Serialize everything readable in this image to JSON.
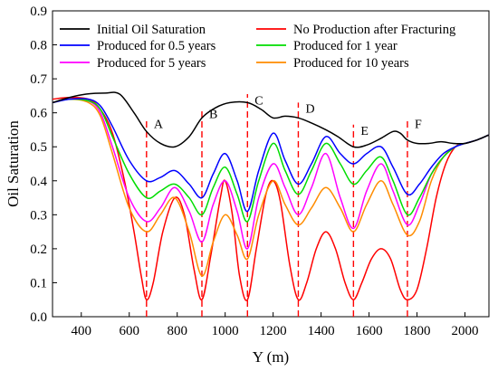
{
  "chart_data": {
    "type": "line",
    "title": "",
    "xlabel": "Y (m)",
    "ylabel": "Oil Saturation",
    "xlim": [
      280,
      2100
    ],
    "ylim": [
      0,
      0.9
    ],
    "xticks": [
      400,
      600,
      800,
      1000,
      1200,
      1400,
      1600,
      1800,
      2000
    ],
    "yticks": [
      0.0,
      0.1,
      0.2,
      0.3,
      0.4,
      0.5,
      0.6,
      0.7,
      0.8,
      0.9
    ],
    "grid": false,
    "legend_position": "top",
    "markers": [
      {
        "label": "A",
        "x": 672
      },
      {
        "label": "B",
        "x": 903
      },
      {
        "label": "C",
        "x": 1093
      },
      {
        "label": "D",
        "x": 1305
      },
      {
        "label": "E",
        "x": 1535
      },
      {
        "label": "F",
        "x": 1760
      }
    ],
    "series": [
      {
        "name": "Initial Oil Saturation",
        "color": "#000000",
        "points": [
          [
            280,
            0.63
          ],
          [
            350,
            0.645
          ],
          [
            420,
            0.655
          ],
          [
            500,
            0.658
          ],
          [
            560,
            0.655
          ],
          [
            620,
            0.6
          ],
          [
            672,
            0.545
          ],
          [
            730,
            0.51
          ],
          [
            790,
            0.5
          ],
          [
            850,
            0.53
          ],
          [
            903,
            0.585
          ],
          [
            960,
            0.615
          ],
          [
            1020,
            0.63
          ],
          [
            1093,
            0.63
          ],
          [
            1150,
            0.61
          ],
          [
            1200,
            0.585
          ],
          [
            1250,
            0.59
          ],
          [
            1305,
            0.585
          ],
          [
            1360,
            0.57
          ],
          [
            1420,
            0.55
          ],
          [
            1470,
            0.53
          ],
          [
            1535,
            0.5
          ],
          [
            1590,
            0.505
          ],
          [
            1650,
            0.525
          ],
          [
            1700,
            0.545
          ],
          [
            1730,
            0.54
          ],
          [
            1760,
            0.52
          ],
          [
            1800,
            0.51
          ],
          [
            1850,
            0.51
          ],
          [
            1900,
            0.515
          ],
          [
            1950,
            0.51
          ],
          [
            2000,
            0.51
          ],
          [
            2050,
            0.52
          ],
          [
            2100,
            0.535
          ]
        ]
      },
      {
        "name": "No Production after Fracturing",
        "color": "#ff0000",
        "points": [
          [
            280,
            0.64
          ],
          [
            350,
            0.645
          ],
          [
            430,
            0.64
          ],
          [
            480,
            0.61
          ],
          [
            530,
            0.54
          ],
          [
            580,
            0.4
          ],
          [
            620,
            0.25
          ],
          [
            650,
            0.12
          ],
          [
            672,
            0.05
          ],
          [
            700,
            0.1
          ],
          [
            740,
            0.25
          ],
          [
            790,
            0.35
          ],
          [
            830,
            0.3
          ],
          [
            870,
            0.14
          ],
          [
            903,
            0.05
          ],
          [
            940,
            0.18
          ],
          [
            980,
            0.35
          ],
          [
            1000,
            0.4
          ],
          [
            1030,
            0.3
          ],
          [
            1060,
            0.12
          ],
          [
            1093,
            0.05
          ],
          [
            1130,
            0.2
          ],
          [
            1170,
            0.36
          ],
          [
            1200,
            0.4
          ],
          [
            1230,
            0.34
          ],
          [
            1270,
            0.15
          ],
          [
            1305,
            0.05
          ],
          [
            1340,
            0.1
          ],
          [
            1380,
            0.2
          ],
          [
            1420,
            0.25
          ],
          [
            1460,
            0.2
          ],
          [
            1500,
            0.1
          ],
          [
            1535,
            0.05
          ],
          [
            1570,
            0.1
          ],
          [
            1610,
            0.17
          ],
          [
            1650,
            0.2
          ],
          [
            1690,
            0.17
          ],
          [
            1730,
            0.08
          ],
          [
            1760,
            0.05
          ],
          [
            1800,
            0.08
          ],
          [
            1840,
            0.2
          ],
          [
            1880,
            0.35
          ],
          [
            1920,
            0.45
          ],
          [
            1960,
            0.5
          ],
          [
            2000,
            0.51
          ],
          [
            2050,
            0.52
          ],
          [
            2100,
            0.535
          ]
        ]
      },
      {
        "name": "Produced for 0.5 years",
        "color": "#0000ff",
        "points": [
          [
            280,
            0.63
          ],
          [
            350,
            0.64
          ],
          [
            430,
            0.64
          ],
          [
            480,
            0.62
          ],
          [
            530,
            0.56
          ],
          [
            600,
            0.46
          ],
          [
            672,
            0.4
          ],
          [
            730,
            0.41
          ],
          [
            790,
            0.43
          ],
          [
            850,
            0.39
          ],
          [
            903,
            0.35
          ],
          [
            950,
            0.42
          ],
          [
            1000,
            0.48
          ],
          [
            1050,
            0.4
          ],
          [
            1093,
            0.31
          ],
          [
            1140,
            0.43
          ],
          [
            1200,
            0.54
          ],
          [
            1250,
            0.46
          ],
          [
            1305,
            0.39
          ],
          [
            1360,
            0.45
          ],
          [
            1420,
            0.53
          ],
          [
            1480,
            0.48
          ],
          [
            1535,
            0.45
          ],
          [
            1590,
            0.48
          ],
          [
            1650,
            0.5
          ],
          [
            1700,
            0.44
          ],
          [
            1760,
            0.36
          ],
          [
            1810,
            0.39
          ],
          [
            1860,
            0.44
          ],
          [
            1910,
            0.48
          ],
          [
            1960,
            0.5
          ],
          [
            2000,
            0.51
          ],
          [
            2050,
            0.52
          ],
          [
            2100,
            0.535
          ]
        ]
      },
      {
        "name": "Produced for 1 year",
        "color": "#00dd00",
        "points": [
          [
            280,
            0.63
          ],
          [
            350,
            0.64
          ],
          [
            430,
            0.635
          ],
          [
            480,
            0.61
          ],
          [
            530,
            0.53
          ],
          [
            600,
            0.42
          ],
          [
            672,
            0.35
          ],
          [
            730,
            0.37
          ],
          [
            790,
            0.39
          ],
          [
            850,
            0.35
          ],
          [
            903,
            0.3
          ],
          [
            950,
            0.38
          ],
          [
            1000,
            0.44
          ],
          [
            1050,
            0.36
          ],
          [
            1093,
            0.28
          ],
          [
            1140,
            0.4
          ],
          [
            1200,
            0.51
          ],
          [
            1250,
            0.43
          ],
          [
            1305,
            0.36
          ],
          [
            1360,
            0.43
          ],
          [
            1420,
            0.51
          ],
          [
            1480,
            0.45
          ],
          [
            1535,
            0.39
          ],
          [
            1590,
            0.43
          ],
          [
            1650,
            0.47
          ],
          [
            1700,
            0.4
          ],
          [
            1760,
            0.3
          ],
          [
            1810,
            0.35
          ],
          [
            1860,
            0.42
          ],
          [
            1910,
            0.47
          ],
          [
            1960,
            0.5
          ],
          [
            2000,
            0.51
          ],
          [
            2050,
            0.52
          ],
          [
            2100,
            0.535
          ]
        ]
      },
      {
        "name": "Produced for 5 years",
        "color": "#ff00ff",
        "points": [
          [
            280,
            0.63
          ],
          [
            350,
            0.64
          ],
          [
            430,
            0.635
          ],
          [
            480,
            0.6
          ],
          [
            530,
            0.5
          ],
          [
            600,
            0.35
          ],
          [
            672,
            0.28
          ],
          [
            730,
            0.32
          ],
          [
            790,
            0.38
          ],
          [
            850,
            0.31
          ],
          [
            903,
            0.22
          ],
          [
            950,
            0.33
          ],
          [
            1000,
            0.4
          ],
          [
            1050,
            0.31
          ],
          [
            1093,
            0.2
          ],
          [
            1140,
            0.35
          ],
          [
            1200,
            0.45
          ],
          [
            1250,
            0.38
          ],
          [
            1305,
            0.3
          ],
          [
            1360,
            0.38
          ],
          [
            1420,
            0.48
          ],
          [
            1480,
            0.35
          ],
          [
            1535,
            0.26
          ],
          [
            1590,
            0.37
          ],
          [
            1650,
            0.45
          ],
          [
            1700,
            0.37
          ],
          [
            1760,
            0.27
          ],
          [
            1810,
            0.33
          ],
          [
            1860,
            0.42
          ],
          [
            1910,
            0.47
          ],
          [
            1960,
            0.5
          ],
          [
            2000,
            0.51
          ],
          [
            2050,
            0.52
          ],
          [
            2100,
            0.535
          ]
        ]
      },
      {
        "name": "Produced for 10 years",
        "color": "#ff8c00",
        "points": [
          [
            280,
            0.63
          ],
          [
            350,
            0.64
          ],
          [
            430,
            0.63
          ],
          [
            480,
            0.59
          ],
          [
            530,
            0.48
          ],
          [
            600,
            0.32
          ],
          [
            672,
            0.25
          ],
          [
            730,
            0.3
          ],
          [
            790,
            0.35
          ],
          [
            850,
            0.25
          ],
          [
            903,
            0.12
          ],
          [
            950,
            0.22
          ],
          [
            1000,
            0.3
          ],
          [
            1050,
            0.24
          ],
          [
            1093,
            0.17
          ],
          [
            1140,
            0.3
          ],
          [
            1200,
            0.4
          ],
          [
            1250,
            0.33
          ],
          [
            1305,
            0.27
          ],
          [
            1360,
            0.32
          ],
          [
            1420,
            0.38
          ],
          [
            1480,
            0.32
          ],
          [
            1535,
            0.25
          ],
          [
            1590,
            0.33
          ],
          [
            1650,
            0.4
          ],
          [
            1700,
            0.33
          ],
          [
            1760,
            0.24
          ],
          [
            1810,
            0.28
          ],
          [
            1860,
            0.4
          ],
          [
            1910,
            0.47
          ],
          [
            1960,
            0.5
          ],
          [
            2000,
            0.51
          ],
          [
            2050,
            0.52
          ],
          [
            2100,
            0.535
          ]
        ]
      }
    ]
  }
}
